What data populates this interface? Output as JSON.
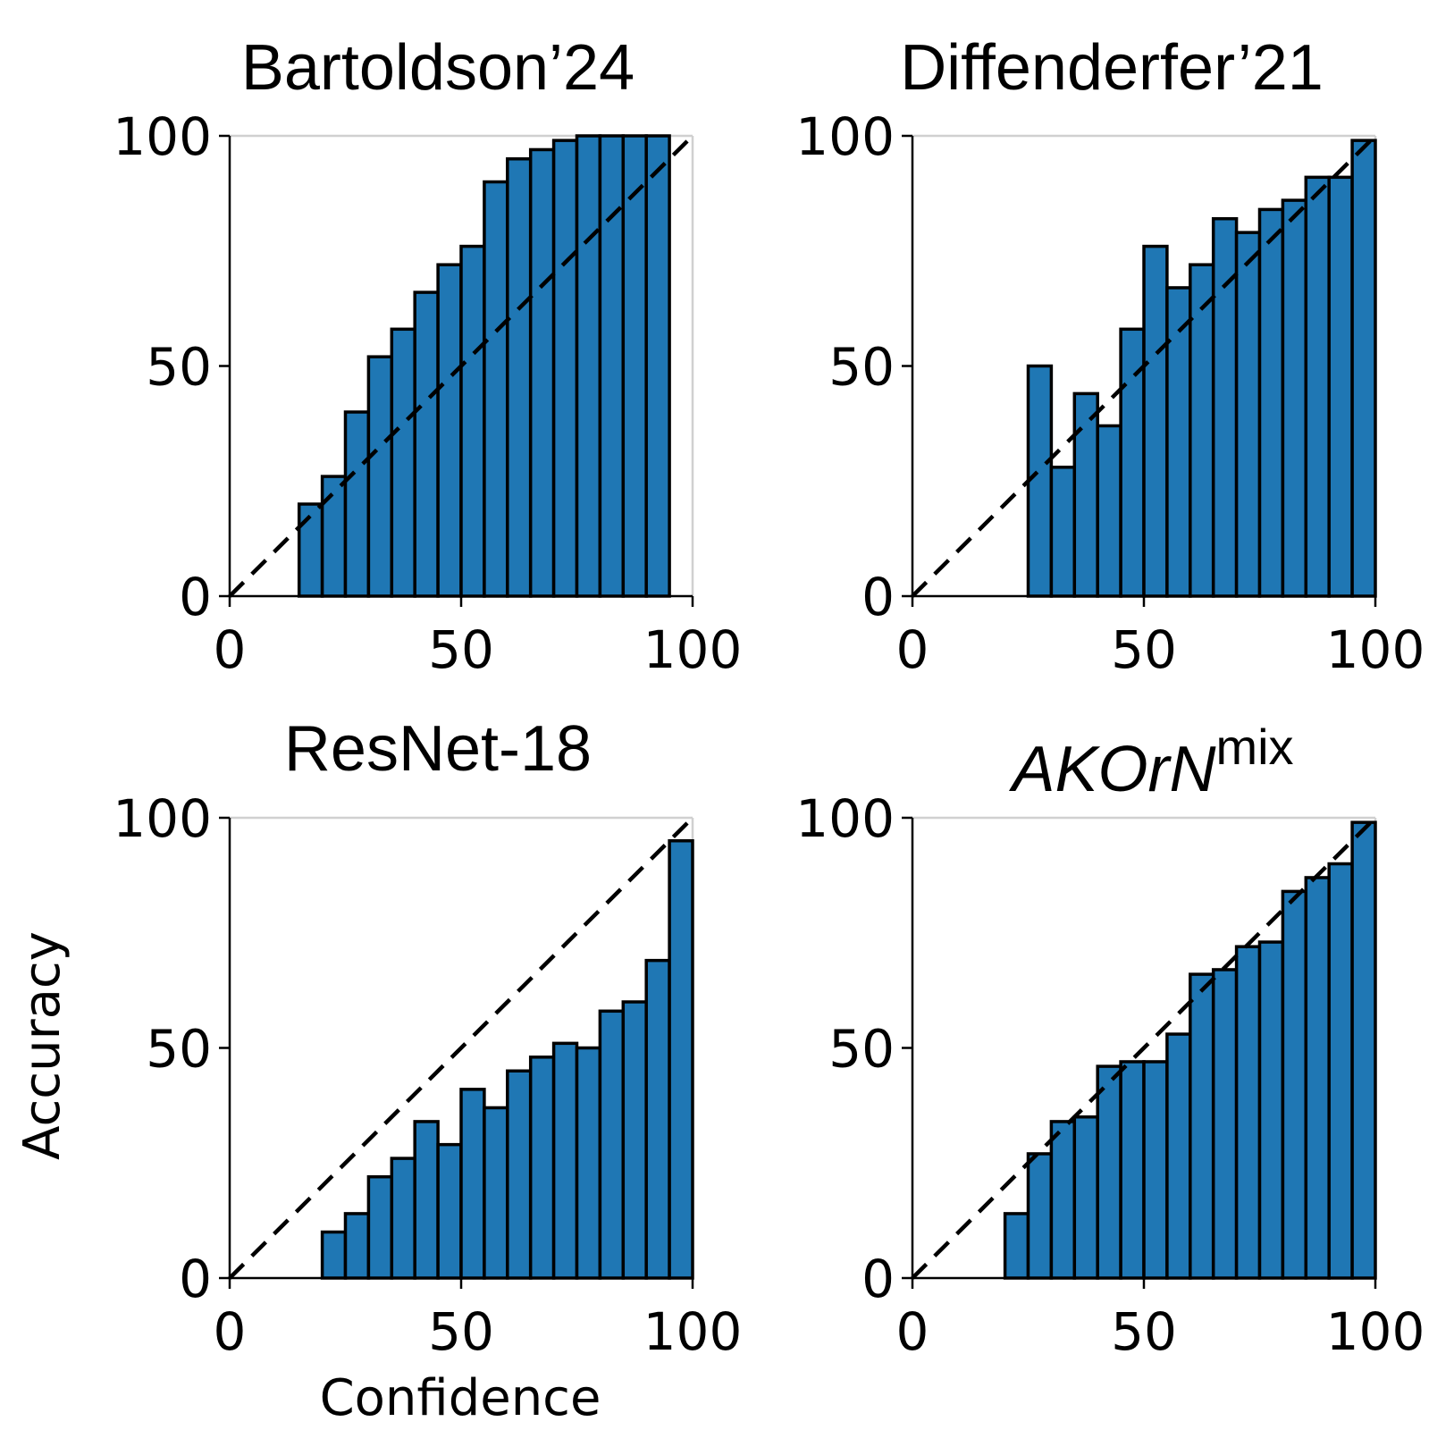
{
  "chart_data": [
    {
      "type": "bar",
      "title": "Bartoldson’24",
      "bin_width": 5,
      "bin_starts": [
        0,
        5,
        10,
        15,
        20,
        25,
        30,
        35,
        40,
        45,
        50,
        55,
        60,
        65,
        70,
        75,
        80,
        85,
        90,
        95
      ],
      "values": [
        0,
        0,
        0,
        20,
        26,
        40,
        52,
        58,
        66,
        72,
        76,
        90,
        95,
        97,
        99,
        100,
        100,
        100,
        100,
        null
      ],
      "xlim": [
        0,
        100
      ],
      "ylim": [
        0,
        100
      ],
      "xticks": [
        "0",
        "50",
        "100"
      ],
      "yticks": [
        "0",
        "50",
        "100"
      ],
      "diagonal": true,
      "grid": "y-top"
    },
    {
      "type": "bar",
      "title": "Diffenderfer’21",
      "bin_width": 5,
      "bin_starts": [
        0,
        5,
        10,
        15,
        20,
        25,
        30,
        35,
        40,
        45,
        50,
        55,
        60,
        65,
        70,
        75,
        80,
        85,
        90,
        95
      ],
      "values": [
        0,
        0,
        0,
        0,
        0,
        50,
        28,
        44,
        37,
        58,
        76,
        67,
        72,
        82,
        79,
        84,
        86,
        91,
        91,
        99
      ],
      "xlim": [
        0,
        100
      ],
      "ylim": [
        0,
        100
      ],
      "xticks": [
        "0",
        "50",
        "100"
      ],
      "yticks": [
        "0",
        "50",
        "100"
      ],
      "diagonal": true,
      "grid": "y-top"
    },
    {
      "type": "bar",
      "title": "ResNet-18",
      "bin_width": 5,
      "bin_starts": [
        0,
        5,
        10,
        15,
        20,
        25,
        30,
        35,
        40,
        45,
        50,
        55,
        60,
        65,
        70,
        75,
        80,
        85,
        90,
        95
      ],
      "values": [
        0,
        0,
        0,
        0,
        10,
        14,
        22,
        26,
        34,
        29,
        41,
        37,
        45,
        48,
        51,
        50,
        58,
        60,
        69,
        95
      ],
      "xlim": [
        0,
        100
      ],
      "ylim": [
        0,
        100
      ],
      "xticks": [
        "0",
        "50",
        "100"
      ],
      "yticks": [
        "0",
        "50",
        "100"
      ],
      "xlabel": "Confidence",
      "ylabel": "Accuracy",
      "diagonal": true,
      "grid": "y-top"
    },
    {
      "type": "bar",
      "title": "AKOrN",
      "title_superscript": "mix",
      "bin_width": 5,
      "bin_starts": [
        0,
        5,
        10,
        15,
        20,
        25,
        30,
        35,
        40,
        45,
        50,
        55,
        60,
        65,
        70,
        75,
        80,
        85,
        90,
        95
      ],
      "values": [
        0,
        0,
        0,
        0,
        14,
        27,
        34,
        35,
        46,
        47,
        47,
        53,
        66,
        67,
        72,
        73,
        84,
        87,
        90,
        99
      ],
      "xlim": [
        0,
        100
      ],
      "ylim": [
        0,
        100
      ],
      "xticks": [
        "0",
        "50",
        "100"
      ],
      "yticks": [
        "0",
        "50",
        "100"
      ],
      "diagonal": true,
      "grid": "y-top"
    }
  ]
}
